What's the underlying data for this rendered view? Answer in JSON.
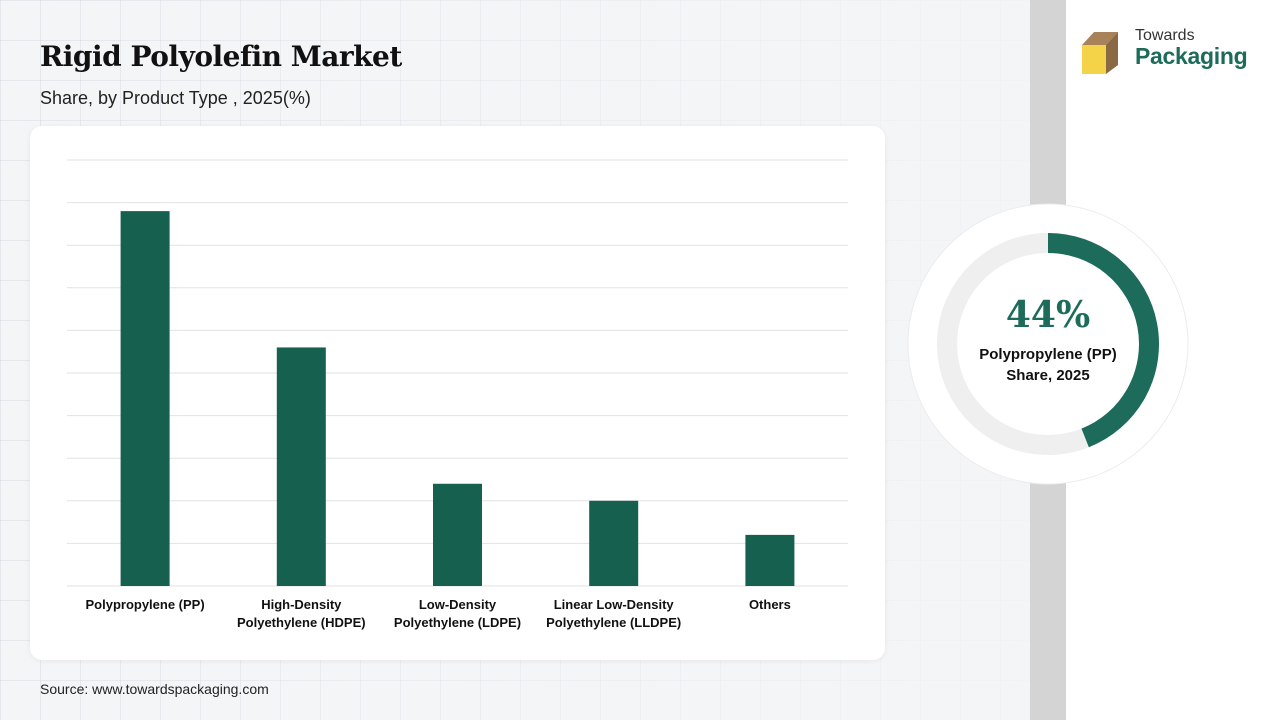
{
  "header": {
    "title": "Rigid Polyolefin Market",
    "subtitle": "Share, by Product Type , 2025(%)"
  },
  "logo": {
    "line1": "Towards",
    "line2": "Packaging",
    "icon": "box-icon"
  },
  "footer": {
    "source": "Source: www.towardspackaging.com"
  },
  "colors": {
    "bar": "#16604f",
    "accent": "#1d6b5a",
    "donut_track": "#efefef"
  },
  "chart_data": [
    {
      "type": "bar",
      "categories": [
        [
          "Polypropylene (PP)"
        ],
        [
          "High-Density",
          "Polyethylene (HDPE)"
        ],
        [
          "Low-Density",
          "Polyethylene (LDPE)"
        ],
        [
          "Linear Low-Density",
          "Polyethylene (LLDPE)"
        ],
        [
          "Others"
        ]
      ],
      "values": [
        44,
        28,
        12,
        10,
        6
      ],
      "ylim": [
        0,
        50
      ],
      "grid": true
    },
    {
      "type": "pie",
      "value": 44,
      "value_label": "44%",
      "label_line1": "Polypropylene (PP)",
      "label_line2": "Share, 2025"
    }
  ]
}
